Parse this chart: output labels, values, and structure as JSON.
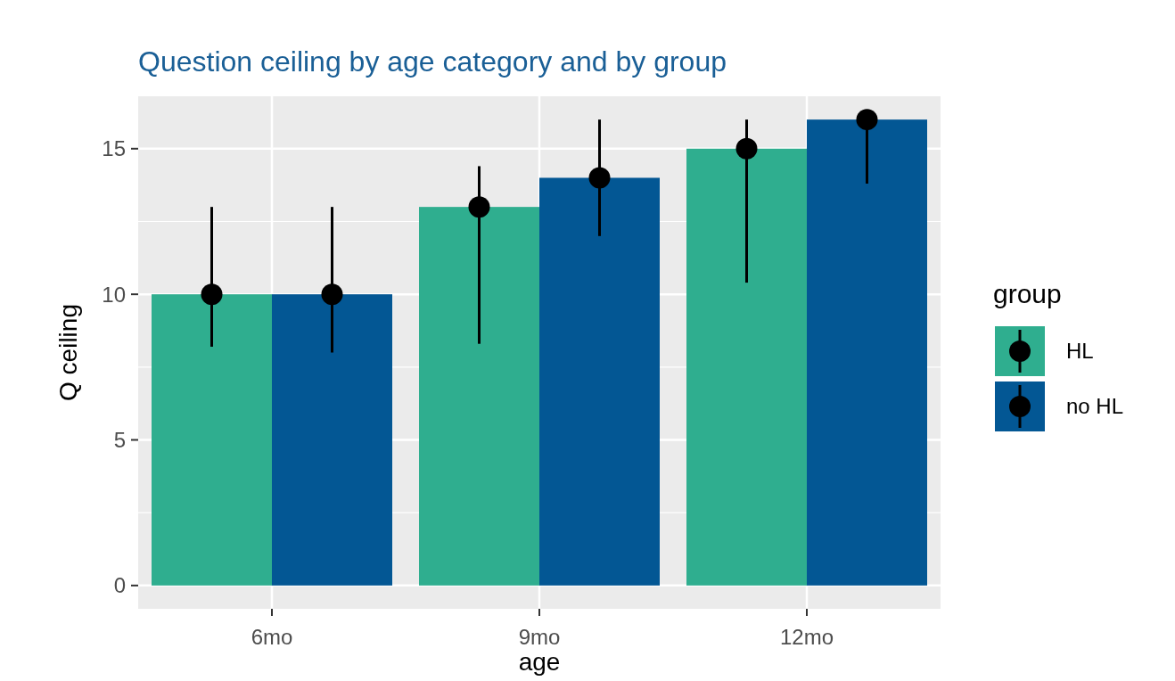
{
  "chart_data": {
    "type": "bar",
    "title": "Question ceiling by age category and by group",
    "xlabel": "age",
    "ylabel": "Q ceiling",
    "legend_title": "group",
    "categories": [
      "6mo",
      "9mo",
      "12mo"
    ],
    "series": [
      {
        "name": "HL",
        "color": "#2fae8f",
        "values": [
          10,
          13,
          15
        ]
      },
      {
        "name": "no HL",
        "color": "#035794",
        "values": [
          10,
          14,
          16
        ]
      },
      {
        "type": "scatter",
        "color": "#000000",
        "x": [
          "6mo",
          "9mo",
          "12mo"
        ],
        "values": [
          10,
          13,
          15
        ],
        "errors": [
          [
            8.2,
            13
          ],
          [
            8.3,
            14.4
          ],
          [
            10.4,
            16
          ]
        ]
      },
      {
        "type": "scatter",
        "color": "#000000",
        "x": [
          "6mo",
          "9mo",
          "12mo"
        ],
        "values": [
          10,
          14,
          16
        ],
        "errors": [
          [
            8,
            13
          ],
          [
            12,
            16
          ],
          [
            13.8,
            16
          ]
        ]
      }
    ],
    "ylim": [
      -0.8,
      16.8
    ],
    "yticks": [
      0,
      5,
      10,
      15
    ],
    "grid": true,
    "legend": "right",
    "marker": "circle"
  }
}
